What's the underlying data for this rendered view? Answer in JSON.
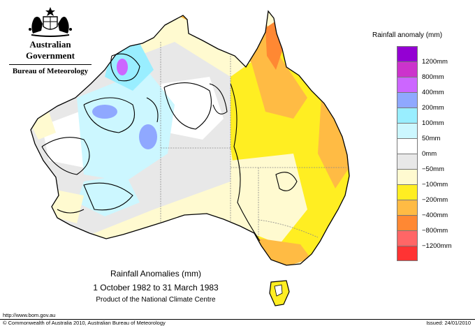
{
  "header": {
    "government": "Australian Government",
    "bureau": "Bureau of Meteorology"
  },
  "map": {
    "title": "Rainfall Anomalies (mm)",
    "period": "1 October 1982 to 31 March 1983",
    "product": "Product of the National Climate Centre"
  },
  "legend": {
    "title": "Rainfall anomaly (mm)",
    "items": [
      {
        "label": "1200mm",
        "color": "#9400d3"
      },
      {
        "label": "800mm",
        "color": "#cc33cc"
      },
      {
        "label": "400mm",
        "color": "#cc66ff"
      },
      {
        "label": "200mm",
        "color": "#8fa8ff"
      },
      {
        "label": "100mm",
        "color": "#99eeff"
      },
      {
        "label": "50mm",
        "color": "#ccf7ff"
      },
      {
        "label": "0mm",
        "color": "#ffffff"
      },
      {
        "label": "−50mm",
        "color": "#e8e8e8"
      },
      {
        "label": "−100mm",
        "color": "#fffad0"
      },
      {
        "label": "−200mm",
        "color": "#ffee22"
      },
      {
        "label": "−400mm",
        "color": "#ffbb44"
      },
      {
        "label": "−800mm",
        "color": "#ff8833"
      },
      {
        "label": "−1200mm",
        "color": "#ff6666"
      },
      {
        "label": "",
        "color": "#ff3333"
      }
    ]
  },
  "footer": {
    "url": "http://www.bom.gov.au",
    "copyright": "© Commonwealth of Australia 2010, Australian Bureau of Meteorology",
    "issued": "Issued: 24/01/2010"
  }
}
